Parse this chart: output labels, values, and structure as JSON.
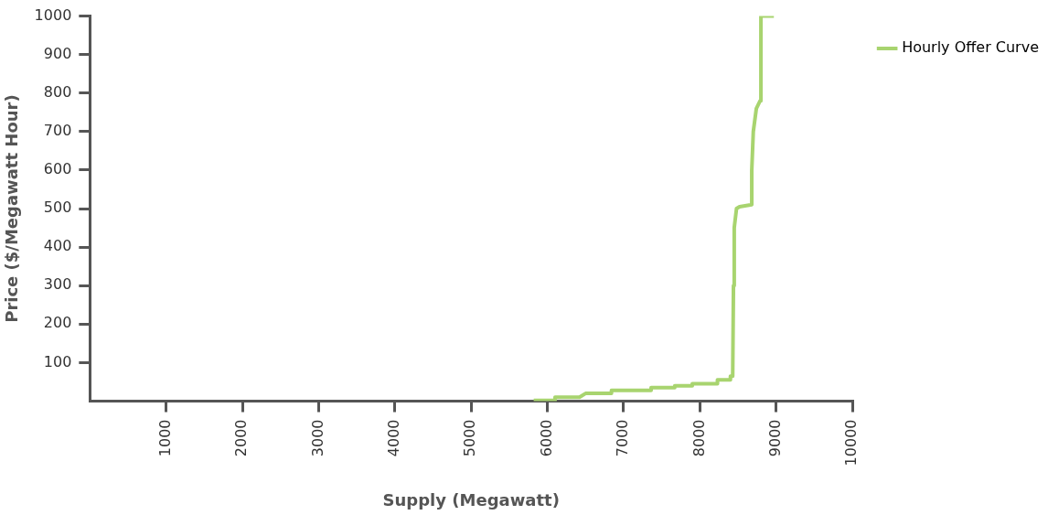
{
  "chart_data": {
    "type": "line",
    "xlabel": "Supply (Megawatt)",
    "ylabel": "Price ($/Megawatt Hour)",
    "x": [
      5820,
      6100,
      6100,
      6420,
      6500,
      6840,
      6840,
      7360,
      7360,
      7670,
      7670,
      7900,
      7900,
      8230,
      8230,
      8400,
      8400,
      8430,
      8440,
      8450,
      8480,
      8520,
      8680,
      8680,
      8700,
      8740,
      8790,
      8800,
      8800,
      8970
    ],
    "series": [
      {
        "name": "Hourly Offer Curve",
        "color": "#a8d46f",
        "values": [
          2,
          2,
          10,
          10,
          20,
          20,
          28,
          28,
          35,
          35,
          40,
          40,
          45,
          45,
          55,
          55,
          65,
          65,
          300,
          450,
          500,
          505,
          510,
          600,
          700,
          760,
          780,
          780,
          1000,
          1000
        ]
      }
    ],
    "xlim": [
      0,
      10000
    ],
    "xticks": [
      1000,
      2000,
      3000,
      4000,
      5000,
      6000,
      7000,
      8000,
      9000,
      10000
    ],
    "ylim": [
      0,
      1000
    ],
    "yticks": [
      100,
      200,
      300,
      400,
      500,
      600,
      700,
      800,
      900,
      1000
    ],
    "grid": false,
    "legend": "top right",
    "marker": "none",
    "line_style": "solid"
  }
}
